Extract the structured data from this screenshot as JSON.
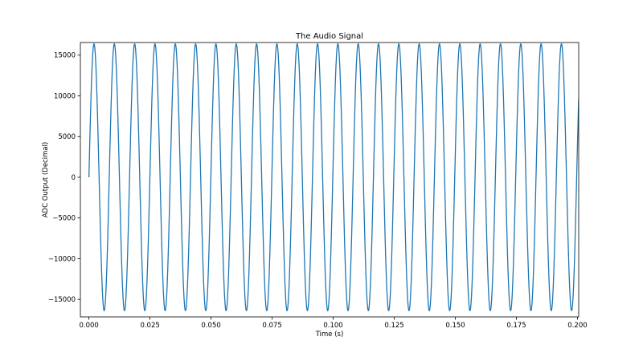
{
  "chart_data": {
    "type": "line",
    "title": "The Audio Signal",
    "xlabel": "Time (s)",
    "ylabel": "ADC Output (Decimal)",
    "xlim": [
      -0.0035,
      0.2005
    ],
    "ylim": [
      -17150,
      16550
    ],
    "grid": false,
    "legend": "none",
    "xticks": [
      0.0,
      0.025,
      0.05,
      0.075,
      0.1,
      0.125,
      0.15,
      0.175,
      0.2
    ],
    "xtick_labels": [
      "0.000",
      "0.025",
      "0.050",
      "0.075",
      "0.100",
      "0.125",
      "0.150",
      "0.175",
      "0.200"
    ],
    "yticks": [
      15000,
      10000,
      5000,
      0,
      -5000,
      -10000,
      -15000
    ],
    "ytick_labels": [
      "15000",
      "10000",
      "5000",
      "0",
      "−5000",
      "−10000",
      "−15000"
    ],
    "series": [
      {
        "color": "#1f77b4",
        "function": "sine",
        "amplitude": 16383,
        "frequency_hz": 120.2,
        "x_start": 0.0,
        "x_end": 0.2005,
        "sample_rate": 20000
      }
    ]
  }
}
